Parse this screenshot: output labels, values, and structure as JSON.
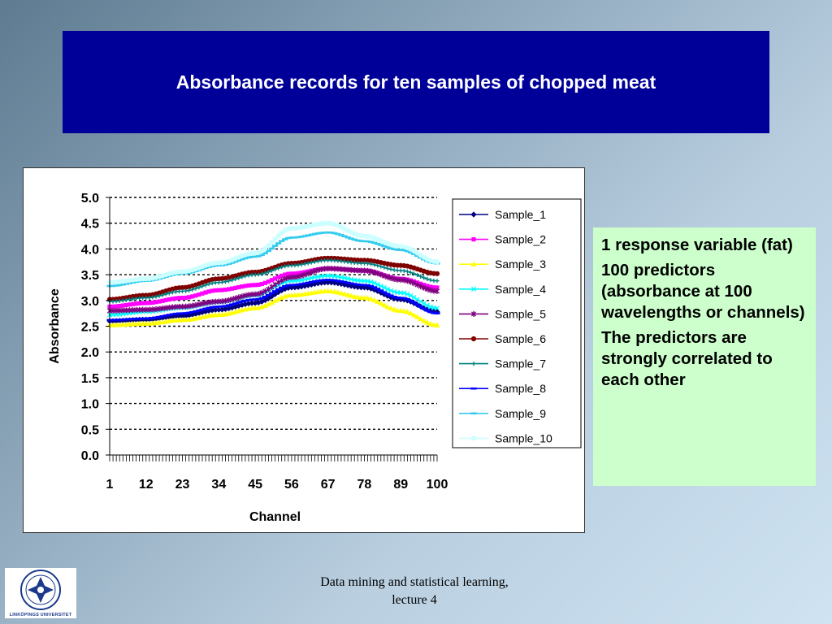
{
  "slide": {
    "title": "Absorbance records for ten samples of chopped meat",
    "notes": [
      "1 response variable (fat)",
      "100 predictors (absorbance at 100 wavelengths or channels)",
      "The predictors are strongly correlated to each other"
    ],
    "footer_line1": "Data mining and statistical learning,",
    "footer_line2": "lecture 4",
    "logo_text": "LINKÖPINGS UNIVERSITET"
  },
  "chart_data": {
    "type": "line",
    "title": "",
    "xlabel": "Channel",
    "ylabel": "Absorbance",
    "xlim": [
      1,
      100
    ],
    "ylim": [
      0,
      5
    ],
    "yticks": [
      "0.0",
      "0.5",
      "1.0",
      "1.5",
      "2.0",
      "2.5",
      "3.0",
      "3.5",
      "4.0",
      "4.5",
      "5.0"
    ],
    "xticks": [
      1,
      12,
      23,
      34,
      45,
      56,
      67,
      78,
      89,
      100
    ],
    "grid": "horizontal dotted",
    "legend_position": "right",
    "series": [
      {
        "name": "Sample_1",
        "color": "#000080",
        "marker": "diamond",
        "points": [
          [
            1,
            2.6
          ],
          [
            12,
            2.63
          ],
          [
            23,
            2.7
          ],
          [
            34,
            2.82
          ],
          [
            45,
            2.95
          ],
          [
            56,
            3.25
          ],
          [
            67,
            3.35
          ],
          [
            78,
            3.25
          ],
          [
            89,
            3.02
          ],
          [
            100,
            2.78
          ]
        ]
      },
      {
        "name": "Sample_2",
        "color": "#ff00ff",
        "marker": "square",
        "points": [
          [
            1,
            2.88
          ],
          [
            12,
            2.95
          ],
          [
            23,
            3.05
          ],
          [
            34,
            3.2
          ],
          [
            45,
            3.3
          ],
          [
            56,
            3.52
          ],
          [
            67,
            3.62
          ],
          [
            78,
            3.58
          ],
          [
            89,
            3.42
          ],
          [
            100,
            3.25
          ]
        ]
      },
      {
        "name": "Sample_3",
        "color": "#ffff00",
        "marker": "triangle",
        "points": [
          [
            1,
            2.52
          ],
          [
            12,
            2.55
          ],
          [
            23,
            2.62
          ],
          [
            34,
            2.72
          ],
          [
            45,
            2.85
          ],
          [
            56,
            3.1
          ],
          [
            67,
            3.18
          ],
          [
            78,
            3.05
          ],
          [
            89,
            2.8
          ],
          [
            100,
            2.52
          ]
        ]
      },
      {
        "name": "Sample_4",
        "color": "#00ffff",
        "marker": "x",
        "points": [
          [
            1,
            2.72
          ],
          [
            12,
            2.78
          ],
          [
            23,
            2.86
          ],
          [
            34,
            2.97
          ],
          [
            45,
            3.1
          ],
          [
            56,
            3.38
          ],
          [
            67,
            3.48
          ],
          [
            78,
            3.38
          ],
          [
            89,
            3.15
          ],
          [
            100,
            2.85
          ]
        ]
      },
      {
        "name": "Sample_5",
        "color": "#800080",
        "marker": "star",
        "points": [
          [
            1,
            2.8
          ],
          [
            12,
            2.82
          ],
          [
            23,
            2.88
          ],
          [
            34,
            2.98
          ],
          [
            45,
            3.12
          ],
          [
            56,
            3.45
          ],
          [
            67,
            3.62
          ],
          [
            78,
            3.58
          ],
          [
            89,
            3.4
          ],
          [
            100,
            3.18
          ]
        ]
      },
      {
        "name": "Sample_6",
        "color": "#800000",
        "marker": "circle",
        "points": [
          [
            1,
            3.02
          ],
          [
            12,
            3.1
          ],
          [
            23,
            3.25
          ],
          [
            34,
            3.42
          ],
          [
            45,
            3.55
          ],
          [
            56,
            3.72
          ],
          [
            67,
            3.82
          ],
          [
            78,
            3.78
          ],
          [
            89,
            3.68
          ],
          [
            100,
            3.52
          ]
        ]
      },
      {
        "name": "Sample_7",
        "color": "#008080",
        "marker": "plus",
        "points": [
          [
            1,
            2.98
          ],
          [
            12,
            3.05
          ],
          [
            23,
            3.18
          ],
          [
            34,
            3.35
          ],
          [
            45,
            3.5
          ],
          [
            56,
            3.68
          ],
          [
            67,
            3.78
          ],
          [
            78,
            3.72
          ],
          [
            89,
            3.58
          ],
          [
            100,
            3.38
          ]
        ]
      },
      {
        "name": "Sample_8",
        "color": "#0000ff",
        "marker": "dash",
        "points": [
          [
            1,
            2.62
          ],
          [
            12,
            2.65
          ],
          [
            23,
            2.75
          ],
          [
            34,
            2.88
          ],
          [
            45,
            3.02
          ],
          [
            56,
            3.3
          ],
          [
            67,
            3.4
          ],
          [
            78,
            3.3
          ],
          [
            89,
            3.05
          ],
          [
            100,
            2.75
          ]
        ]
      },
      {
        "name": "Sample_9",
        "color": "#33ccee",
        "marker": "dash",
        "points": [
          [
            1,
            3.28
          ],
          [
            12,
            3.38
          ],
          [
            23,
            3.52
          ],
          [
            34,
            3.68
          ],
          [
            45,
            3.85
          ],
          [
            56,
            4.22
          ],
          [
            67,
            4.32
          ],
          [
            78,
            4.15
          ],
          [
            89,
            3.98
          ],
          [
            100,
            3.72
          ]
        ]
      },
      {
        "name": "Sample_10",
        "color": "#ccffff",
        "marker": "circle",
        "points": [
          [
            1,
            3.35
          ],
          [
            12,
            3.42
          ],
          [
            23,
            3.56
          ],
          [
            34,
            3.73
          ],
          [
            45,
            3.92
          ],
          [
            56,
            4.4
          ],
          [
            67,
            4.5
          ],
          [
            78,
            4.25
          ],
          [
            89,
            4.05
          ],
          [
            100,
            3.75
          ]
        ]
      }
    ]
  }
}
